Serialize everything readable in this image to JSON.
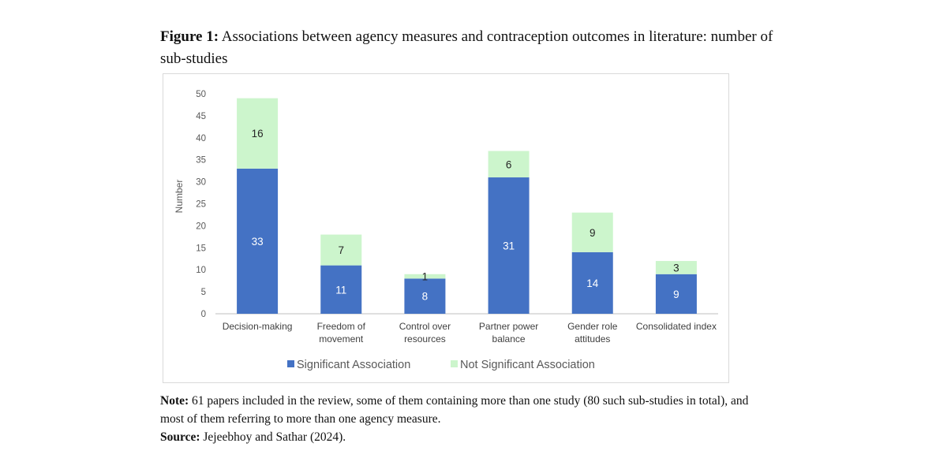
{
  "figure": {
    "label": "Figure 1:",
    "caption": "Associations between agency measures and contraception outcomes in literature: number of sub-studies"
  },
  "chart_data": {
    "type": "bar",
    "stacked": true,
    "title": "",
    "ylabel": "Number",
    "xlabel": "",
    "ylim": [
      0,
      50
    ],
    "yticks": [
      0,
      5,
      10,
      15,
      20,
      25,
      30,
      35,
      40,
      45,
      50
    ],
    "grid": false,
    "legend_position": "bottom",
    "categories": [
      [
        "Decision-making"
      ],
      [
        "Freedom of",
        "movement"
      ],
      [
        "Control over",
        "resources"
      ],
      [
        "Partner power",
        "balance"
      ],
      [
        "Gender role",
        "attitudes"
      ],
      [
        "Consolidated index"
      ]
    ],
    "series": [
      {
        "name": "Significant Association",
        "color": "#4472c4",
        "label_color": "#ffffff",
        "values": [
          33,
          11,
          8,
          31,
          14,
          9
        ]
      },
      {
        "name": "Not Significant Association",
        "color": "#ccf5cc",
        "label_color": "#262626",
        "values": [
          16,
          7,
          1,
          6,
          9,
          3
        ]
      }
    ]
  },
  "note": {
    "label": "Note:",
    "text": "61 papers included in the review, some of them containing more than one study (80 such sub-studies in total), and most of them referring to more than one agency measure."
  },
  "source": {
    "label": "Source:",
    "text": "Jejeebhoy and Sathar (2024)."
  }
}
